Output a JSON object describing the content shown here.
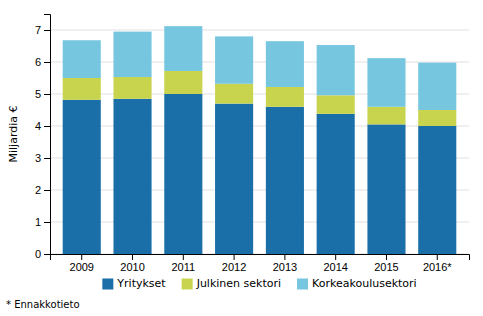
{
  "chart_data": {
    "type": "bar",
    "stacked": true,
    "categories": [
      "2009",
      "2010",
      "2011",
      "2012",
      "2013",
      "2014",
      "2015",
      "2016*"
    ],
    "series": [
      {
        "name": "Yritykset",
        "color": "#1a6fa8",
        "values": [
          4.82,
          4.85,
          5.0,
          4.7,
          4.6,
          4.38,
          4.05,
          4.0
        ]
      },
      {
        "name": "Julkinen sektori",
        "color": "#c8d44e",
        "values": [
          0.68,
          0.68,
          0.72,
          0.62,
          0.62,
          0.58,
          0.55,
          0.5
        ]
      },
      {
        "name": "Korkeakoulusektori",
        "color": "#76c6e0",
        "values": [
          1.18,
          1.42,
          1.4,
          1.48,
          1.43,
          1.57,
          1.52,
          1.48
        ]
      }
    ],
    "ylabel": "Miljardia €",
    "ylim": [
      0,
      7.5
    ],
    "yticks": [
      0,
      1,
      2,
      3,
      4,
      5,
      6,
      7
    ],
    "grid": true,
    "legend": "bottom",
    "footnote": "* Ennakkotieto"
  }
}
